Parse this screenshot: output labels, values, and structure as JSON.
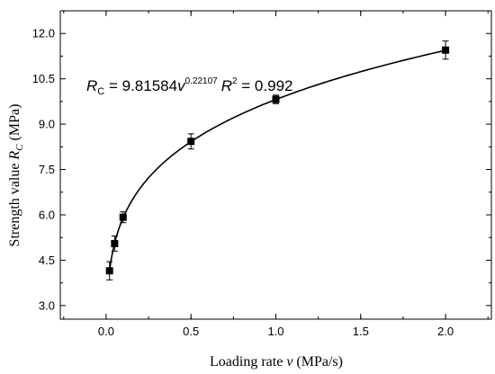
{
  "chart_data": {
    "type": "scatter",
    "xlabel": {
      "prefix": "Loading rate ",
      "var": "v",
      "suffix": " (MPa/s)"
    },
    "ylabel": {
      "prefix": "Strength value ",
      "var": "R",
      "sub": "C",
      "suffix": " (MPa)"
    },
    "xlim": [
      -0.27,
      2.27
    ],
    "ylim": [
      2.55,
      12.75
    ],
    "xticks": [
      {
        "value": 0.0,
        "label": "0.0"
      },
      {
        "value": 0.5,
        "label": "0.5"
      },
      {
        "value": 1.0,
        "label": "1.0"
      },
      {
        "value": 1.5,
        "label": "1.5"
      },
      {
        "value": 2.0,
        "label": "2.0"
      }
    ],
    "yticks": [
      {
        "value": 3.0,
        "label": "3.0"
      },
      {
        "value": 4.5,
        "label": "4.5"
      },
      {
        "value": 6.0,
        "label": "6.0"
      },
      {
        "value": 7.5,
        "label": "7.5"
      },
      {
        "value": 9.0,
        "label": "9.0"
      },
      {
        "value": 10.5,
        "label": "10.5"
      },
      {
        "value": 12.0,
        "label": "12.0"
      }
    ],
    "series": [
      {
        "points": [
          {
            "x": 0.02,
            "y": 4.15,
            "err": 0.3
          },
          {
            "x": 0.05,
            "y": 5.05,
            "err": 0.25
          },
          {
            "x": 0.1,
            "y": 5.92,
            "err": 0.18
          },
          {
            "x": 0.5,
            "y": 8.43,
            "err": 0.25
          },
          {
            "x": 1.0,
            "y": 9.82,
            "err": 0.14
          },
          {
            "x": 2.0,
            "y": 11.45,
            "err": 0.3
          }
        ]
      }
    ],
    "fit": {
      "a": 9.81584,
      "b": 0.22107,
      "r2": 0.992,
      "x_range": [
        0.02,
        2.0
      ]
    },
    "annotation": {
      "lhs_var": "R",
      "lhs_sub": "C",
      "eq_part": " = 9.81584",
      "var": "v",
      "exp": "0.22107",
      "r2_var": "R",
      "r2_sup": "2",
      "r2_part": " = 0.992"
    },
    "grid": false,
    "marker_color": "#000000",
    "line_color": "#000000"
  }
}
